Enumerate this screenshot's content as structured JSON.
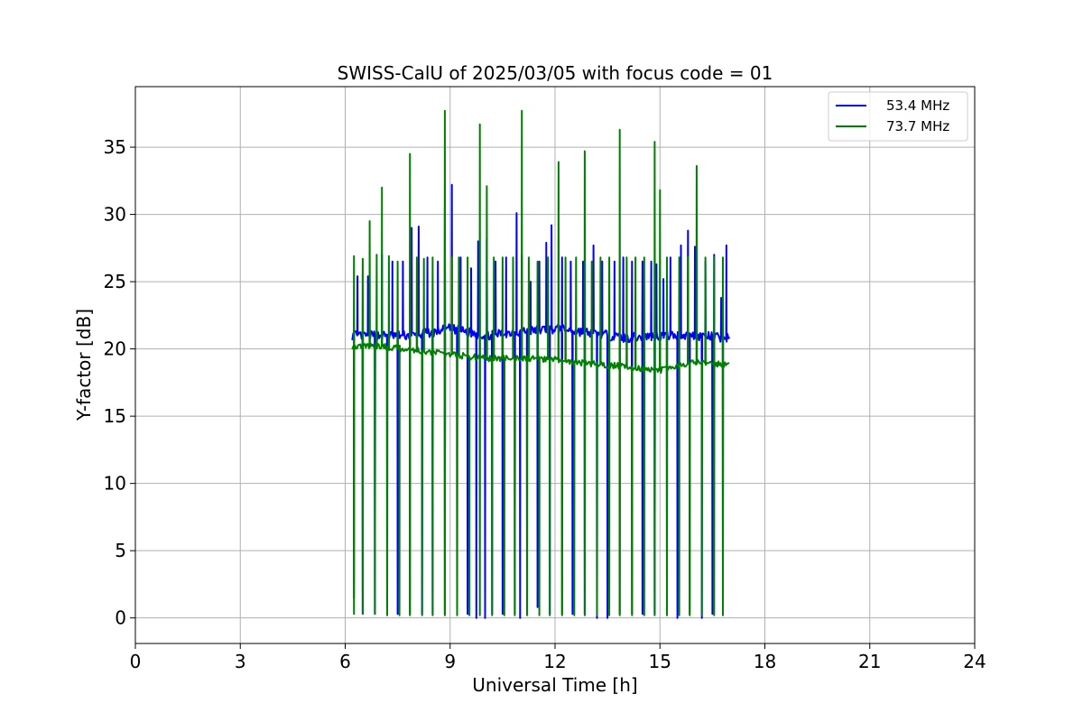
{
  "chart_data": {
    "type": "line",
    "title": "SWISS-CalU of 2025/03/05 with focus code = 01",
    "xlabel": "Universal Time [h]",
    "ylabel": "Y-factor [dB]",
    "xlim": [
      0,
      24
    ],
    "ylim": [
      -1.9,
      39.5
    ],
    "xticks": [
      0,
      3,
      6,
      9,
      12,
      15,
      18,
      21,
      24
    ],
    "yticks": [
      0,
      5,
      10,
      15,
      20,
      25,
      30,
      35
    ],
    "grid": true,
    "legend_position": "top-right",
    "series": [
      {
        "name": "53.4 MHz",
        "color": "#0000ff",
        "base_segments": [
          [
            6.2,
            21.0
          ],
          [
            8.0,
            21.0
          ],
          [
            9.0,
            21.5
          ],
          [
            10.0,
            21.0
          ],
          [
            11.0,
            21.3
          ],
          [
            12.0,
            21.5
          ],
          [
            13.0,
            21.2
          ],
          [
            14.0,
            20.8
          ],
          [
            15.0,
            21.0
          ],
          [
            16.0,
            21.0
          ],
          [
            17.0,
            20.8
          ]
        ],
        "dips": [
          [
            6.25,
            1.5
          ],
          [
            6.5,
            0.3
          ],
          [
            6.85,
            0.3
          ],
          [
            7.2,
            0.3
          ],
          [
            7.5,
            0.3
          ],
          [
            7.85,
            0.3
          ],
          [
            8.2,
            0.3
          ],
          [
            8.5,
            0.3
          ],
          [
            8.85,
            0.3
          ],
          [
            9.2,
            0.3
          ],
          [
            9.5,
            0.3
          ],
          [
            9.75,
            0.0
          ],
          [
            10.0,
            0.0
          ],
          [
            10.2,
            0.3
          ],
          [
            10.5,
            0.3
          ],
          [
            10.85,
            0.3
          ],
          [
            11.0,
            0.0
          ],
          [
            11.2,
            0.3
          ],
          [
            11.5,
            0.8
          ],
          [
            11.85,
            0.3
          ],
          [
            12.2,
            0.3
          ],
          [
            12.5,
            0.3
          ],
          [
            12.85,
            0.3
          ],
          [
            13.2,
            0.0
          ],
          [
            13.5,
            0.0
          ],
          [
            13.85,
            0.3
          ],
          [
            14.2,
            0.3
          ],
          [
            14.5,
            0.3
          ],
          [
            14.85,
            0.3
          ],
          [
            15.2,
            0.3
          ],
          [
            15.5,
            0.0
          ],
          [
            15.85,
            0.3
          ],
          [
            16.2,
            0.0
          ],
          [
            16.5,
            0.3
          ],
          [
            16.8,
            0.3
          ]
        ],
        "peaks": [
          [
            6.35,
            25.4
          ],
          [
            6.65,
            25.4
          ],
          [
            7.05,
            27.0
          ],
          [
            7.35,
            26.5
          ],
          [
            7.65,
            26.5
          ],
          [
            7.9,
            29.0
          ],
          [
            8.1,
            29.1
          ],
          [
            8.35,
            26.8
          ],
          [
            8.65,
            26.5
          ],
          [
            8.85,
            30.5
          ],
          [
            9.05,
            32.2
          ],
          [
            9.3,
            26.8
          ],
          [
            9.6,
            26.0
          ],
          [
            9.8,
            28.0
          ],
          [
            10.05,
            28.2
          ],
          [
            10.3,
            26.5
          ],
          [
            10.6,
            26.8
          ],
          [
            10.9,
            30.1
          ],
          [
            11.05,
            27.0
          ],
          [
            11.3,
            25.0
          ],
          [
            11.55,
            26.5
          ],
          [
            11.75,
            27.9
          ],
          [
            11.9,
            29.2
          ],
          [
            12.2,
            26.8
          ],
          [
            12.45,
            26.5
          ],
          [
            12.8,
            26.5
          ],
          [
            13.1,
            27.7
          ],
          [
            13.35,
            26.5
          ],
          [
            13.7,
            26.5
          ],
          [
            13.95,
            26.8
          ],
          [
            14.2,
            26.5
          ],
          [
            14.5,
            26.5
          ],
          [
            14.75,
            26.5
          ],
          [
            14.9,
            26.3
          ],
          [
            15.1,
            25.2
          ],
          [
            15.3,
            26.8
          ],
          [
            15.6,
            27.7
          ],
          [
            15.8,
            28.8
          ],
          [
            16.0,
            27.6
          ],
          [
            16.3,
            26.5
          ],
          [
            16.55,
            27.0
          ],
          [
            16.75,
            23.8
          ],
          [
            16.9,
            27.7
          ]
        ]
      },
      {
        "name": "73.7 MHz",
        "color": "#008000",
        "base_segments": [
          [
            6.2,
            20.2
          ],
          [
            7.0,
            20.2
          ],
          [
            8.0,
            19.9
          ],
          [
            9.0,
            19.6
          ],
          [
            10.0,
            19.3
          ],
          [
            11.0,
            19.3
          ],
          [
            12.0,
            19.2
          ],
          [
            13.0,
            18.9
          ],
          [
            14.0,
            18.7
          ],
          [
            15.0,
            18.4
          ],
          [
            16.0,
            19.0
          ],
          [
            17.0,
            18.8
          ]
        ],
        "dips": [
          [
            6.25,
            0.3
          ],
          [
            6.5,
            0.3
          ],
          [
            6.85,
            0.3
          ],
          [
            7.2,
            0.2
          ],
          [
            7.55,
            0.2
          ],
          [
            7.85,
            0.2
          ],
          [
            8.2,
            0.2
          ],
          [
            8.5,
            0.2
          ],
          [
            8.85,
            0.2
          ],
          [
            9.2,
            0.2
          ],
          [
            9.55,
            0.2
          ],
          [
            9.85,
            0.2
          ],
          [
            10.2,
            0.2
          ],
          [
            10.55,
            0.2
          ],
          [
            10.85,
            0.2
          ],
          [
            11.2,
            0.2
          ],
          [
            11.55,
            0.2
          ],
          [
            11.85,
            0.2
          ],
          [
            12.2,
            0.2
          ],
          [
            12.55,
            0.2
          ],
          [
            12.85,
            0.2
          ],
          [
            13.2,
            0.2
          ],
          [
            13.55,
            0.2
          ],
          [
            13.85,
            0.2
          ],
          [
            14.2,
            0.2
          ],
          [
            14.55,
            0.2
          ],
          [
            14.85,
            0.2
          ],
          [
            15.2,
            0.2
          ],
          [
            15.55,
            0.2
          ],
          [
            15.85,
            0.2
          ],
          [
            16.2,
            0.2
          ],
          [
            16.55,
            0.2
          ],
          [
            16.8,
            0.2
          ]
        ],
        "peaks": [
          [
            6.25,
            26.9
          ],
          [
            6.5,
            26.7
          ],
          [
            6.7,
            29.5
          ],
          [
            6.9,
            27.0
          ],
          [
            7.05,
            32.0
          ],
          [
            7.25,
            26.9
          ],
          [
            7.5,
            26.5
          ],
          [
            7.85,
            34.5
          ],
          [
            8.05,
            26.8
          ],
          [
            8.25,
            26.7
          ],
          [
            8.5,
            26.8
          ],
          [
            8.85,
            37.7
          ],
          [
            9.05,
            26.8
          ],
          [
            9.25,
            26.8
          ],
          [
            9.5,
            26.8
          ],
          [
            9.85,
            36.7
          ],
          [
            10.05,
            32.1
          ],
          [
            10.25,
            26.8
          ],
          [
            10.5,
            26.8
          ],
          [
            10.8,
            26.8
          ],
          [
            11.05,
            37.7
          ],
          [
            11.25,
            26.8
          ],
          [
            11.5,
            26.5
          ],
          [
            11.8,
            26.8
          ],
          [
            12.1,
            33.9
          ],
          [
            12.3,
            26.8
          ],
          [
            12.6,
            26.8
          ],
          [
            12.85,
            34.7
          ],
          [
            13.05,
            26.5
          ],
          [
            13.3,
            26.8
          ],
          [
            13.55,
            26.8
          ],
          [
            13.85,
            36.3
          ],
          [
            14.05,
            26.8
          ],
          [
            14.3,
            26.8
          ],
          [
            14.55,
            26.8
          ],
          [
            14.85,
            35.4
          ],
          [
            15.0,
            31.8
          ],
          [
            15.2,
            26.8
          ],
          [
            15.55,
            26.8
          ],
          [
            15.8,
            26.8
          ],
          [
            16.05,
            33.6
          ],
          [
            16.3,
            26.8
          ],
          [
            16.55,
            26.8
          ],
          [
            16.8,
            26.8
          ]
        ]
      }
    ]
  }
}
